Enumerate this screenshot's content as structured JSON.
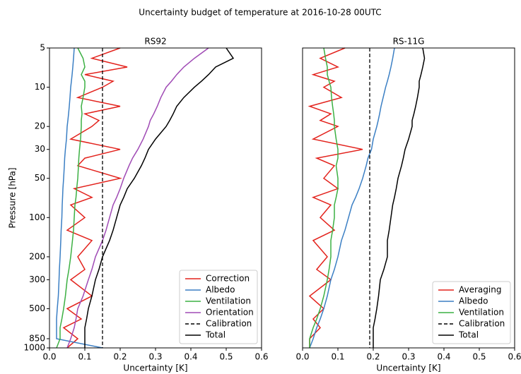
{
  "title": "Uncertainty budget of temperature at 2016-10-28 00UTC",
  "chart_data": [
    {
      "type": "line",
      "title": "RS92",
      "xlabel": "Uncertainty [K]",
      "ylabel": "Pressure [hPa]",
      "log_y": true,
      "legend": "lower right",
      "xlim": [
        0,
        0.6
      ],
      "xticks": [
        {
          "value": 0,
          "label": "0.0"
        },
        0.1,
        0.2,
        0.3,
        0.4,
        0.5,
        0.6
      ],
      "ylim": [
        1000,
        5
      ],
      "yticks": [
        5,
        10,
        20,
        30,
        50,
        100,
        200,
        300,
        500,
        850,
        1000
      ],
      "y": [
        5,
        6,
        7,
        8,
        9,
        10,
        12,
        14,
        16,
        18,
        20,
        25,
        30,
        35,
        40,
        50,
        60,
        70,
        80,
        100,
        125,
        150,
        200,
        250,
        300,
        400,
        500,
        600,
        700,
        850,
        1000
      ],
      "series": [
        {
          "name": "Correction",
          "color": "#e3221c",
          "dash": false,
          "x": [
            0.2,
            0.12,
            0.22,
            0.1,
            0.18,
            0.15,
            0.08,
            0.2,
            0.1,
            0.14,
            0.12,
            0.06,
            0.2,
            0.1,
            0.08,
            0.2,
            0.07,
            0.12,
            0.06,
            0.1,
            0.05,
            0.12,
            0.08,
            0.1,
            0.06,
            0.12,
            0.05,
            0.09,
            0.04,
            0.08,
            0.05
          ]
        },
        {
          "name": "Albedo",
          "color": "#3b7fc4",
          "dash": false,
          "x": [
            0.07,
            0.068,
            0.066,
            0.064,
            0.062,
            0.06,
            0.058,
            0.056,
            0.054,
            0.052,
            0.05,
            0.048,
            0.045,
            0.043,
            0.042,
            0.04,
            0.038,
            0.037,
            0.036,
            0.035,
            0.033,
            0.032,
            0.03,
            0.028,
            0.027,
            0.025,
            0.022,
            0.02,
            0.02,
            0.02,
            0.15
          ]
        },
        {
          "name": "Ventilation",
          "color": "#3cb043",
          "dash": false,
          "x": [
            0.08,
            0.095,
            0.1,
            0.09,
            0.1,
            0.1,
            0.095,
            0.09,
            0.092,
            0.09,
            0.09,
            0.088,
            0.085,
            0.083,
            0.082,
            0.08,
            0.077,
            0.075,
            0.072,
            0.07,
            0.068,
            0.065,
            0.06,
            0.055,
            0.05,
            0.045,
            0.04,
            0.035,
            0.03,
            0.03,
            0.02
          ]
        },
        {
          "name": "Orientation",
          "color": "#a04bb5",
          "dash": false,
          "x": [
            0.45,
            0.41,
            0.38,
            0.36,
            0.345,
            0.33,
            0.315,
            0.305,
            0.295,
            0.285,
            0.28,
            0.265,
            0.25,
            0.235,
            0.225,
            0.21,
            0.2,
            0.19,
            0.18,
            0.17,
            0.16,
            0.15,
            0.13,
            0.12,
            0.11,
            0.095,
            0.08,
            0.075,
            0.07,
            0.06,
            0.05
          ]
        },
        {
          "name": "Calibration",
          "color": "#000000",
          "dash": true,
          "x": [
            0.15,
            0.15,
            0.15,
            0.15,
            0.15,
            0.15,
            0.15,
            0.15,
            0.15,
            0.15,
            0.15,
            0.15,
            0.15,
            0.15,
            0.15,
            0.15,
            0.15,
            0.15,
            0.15,
            0.15,
            0.15,
            0.15,
            0.15,
            0.15,
            0.15,
            0.15,
            0.15,
            0.15,
            0.15,
            0.15,
            0.15
          ]
        },
        {
          "name": "Total",
          "color": "#000000",
          "dash": false,
          "x": [
            0.5,
            0.52,
            0.47,
            0.45,
            0.43,
            0.41,
            0.38,
            0.36,
            0.35,
            0.34,
            0.33,
            0.3,
            0.28,
            0.27,
            0.26,
            0.24,
            0.22,
            0.21,
            0.2,
            0.19,
            0.18,
            0.17,
            0.15,
            0.14,
            0.13,
            0.12,
            0.11,
            0.105,
            0.1,
            0.1,
            0.1
          ]
        }
      ]
    },
    {
      "type": "line",
      "title": "RS-11G",
      "xlabel": "Uncertainty [K]",
      "log_y": true,
      "legend": "lower right",
      "xlim": [
        0,
        0.6
      ],
      "xticks": [
        {
          "value": 0,
          "label": "0.0"
        },
        0.1,
        0.2,
        0.3,
        0.4,
        0.5,
        0.6
      ],
      "ylim": [
        1000,
        5
      ],
      "y": [
        5,
        6,
        7,
        8,
        9,
        10,
        12,
        14,
        16,
        18,
        20,
        25,
        30,
        35,
        40,
        50,
        60,
        70,
        80,
        100,
        125,
        150,
        200,
        250,
        300,
        400,
        500,
        600,
        700,
        850,
        1000
      ],
      "series": [
        {
          "name": "Averaging",
          "color": "#e3221c",
          "dash": false,
          "x": [
            0.12,
            0.05,
            0.1,
            0.03,
            0.09,
            0.06,
            0.11,
            0.02,
            0.08,
            0.05,
            0.1,
            0.03,
            0.17,
            0.04,
            0.09,
            0.06,
            0.1,
            0.03,
            0.08,
            0.05,
            0.09,
            0.03,
            0.07,
            0.04,
            0.08,
            0.02,
            0.06,
            0.03,
            0.05,
            0.02,
            0.02
          ]
        },
        {
          "name": "Albedo",
          "color": "#3b7fc4",
          "dash": false,
          "x": [
            0.26,
            0.255,
            0.25,
            0.245,
            0.24,
            0.235,
            0.228,
            0.222,
            0.218,
            0.214,
            0.21,
            0.2,
            0.195,
            0.185,
            0.18,
            0.17,
            0.16,
            0.15,
            0.14,
            0.13,
            0.12,
            0.11,
            0.1,
            0.09,
            0.08,
            0.07,
            0.06,
            0.05,
            0.04,
            0.03,
            0.02
          ]
        },
        {
          "name": "Ventilation",
          "color": "#3cb043",
          "dash": false,
          "x": [
            0.06,
            0.065,
            0.07,
            0.07,
            0.075,
            0.08,
            0.082,
            0.085,
            0.088,
            0.09,
            0.09,
            0.095,
            0.1,
            0.1,
            0.095,
            0.1,
            0.1,
            0.095,
            0.09,
            0.09,
            0.085,
            0.08,
            0.08,
            0.075,
            0.07,
            0.06,
            0.05,
            0.04,
            0.03,
            0.02,
            0.02
          ]
        },
        {
          "name": "Calibration",
          "color": "#000000",
          "dash": true,
          "x": [
            0.19,
            0.19,
            0.19,
            0.19,
            0.19,
            0.19,
            0.19,
            0.19,
            0.19,
            0.19,
            0.19,
            0.19,
            0.19,
            0.19,
            0.19,
            0.19,
            0.19,
            0.19,
            0.19,
            0.19,
            0.19,
            0.19,
            0.19,
            0.19,
            0.19,
            0.19,
            0.19,
            0.19,
            0.19,
            0.19,
            0.19
          ]
        },
        {
          "name": "Total",
          "color": "#000000",
          "dash": false,
          "x": [
            0.34,
            0.345,
            0.34,
            0.335,
            0.33,
            0.33,
            0.325,
            0.32,
            0.315,
            0.31,
            0.31,
            0.3,
            0.29,
            0.285,
            0.28,
            0.27,
            0.265,
            0.26,
            0.255,
            0.25,
            0.245,
            0.24,
            0.24,
            0.23,
            0.22,
            0.215,
            0.21,
            0.205,
            0.2,
            0.2,
            0.2
          ]
        }
      ]
    }
  ]
}
